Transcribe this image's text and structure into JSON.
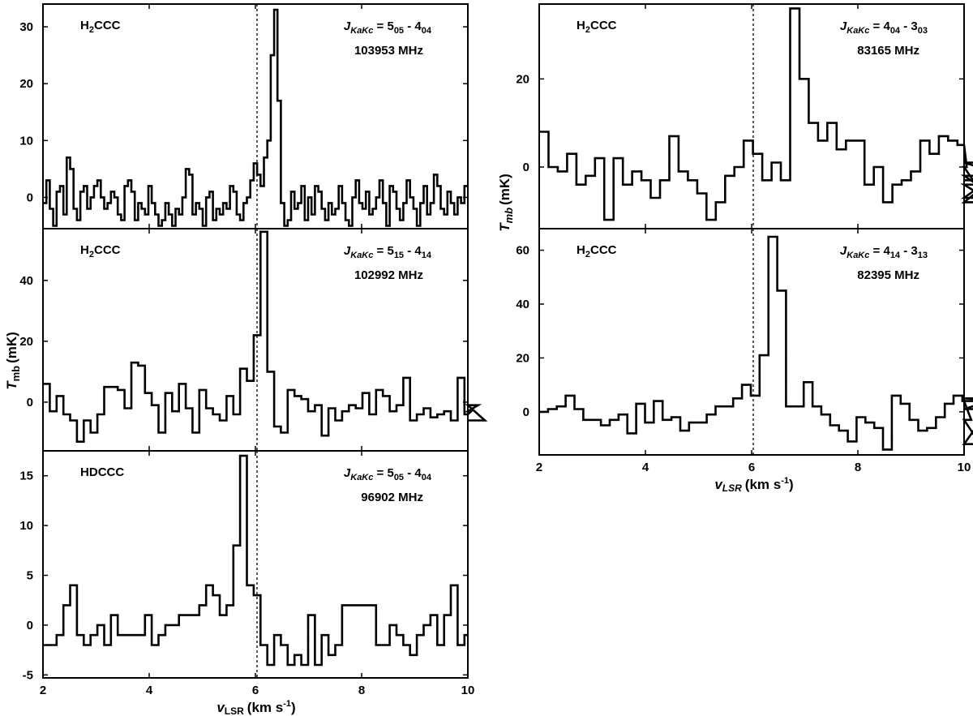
{
  "figure": {
    "left_xlabel": {
      "main": "v",
      "sub": "LSR",
      "unit": "(km  s",
      "sup": "-1",
      "close": ")"
    },
    "left_ylabel": {
      "main": "T",
      "sub": "mb",
      "unit": "(mK)"
    },
    "right_xlabel": {
      "main": "v",
      "sub": "LSR",
      "unit": "(km  s",
      "sup": "-1",
      "close": ")"
    },
    "right_ylabel": {
      "main": "T",
      "sub": "mb",
      "unit": "(mK)"
    }
  },
  "chart_data": [
    {
      "type": "line",
      "style": "step",
      "molecule": "H2CCC",
      "transition": "JKaKc = 505 - 404",
      "frequency": "103953 MHz",
      "xlim": [
        2,
        10
      ],
      "ylim": [
        -5.5,
        34
      ],
      "xticks": [
        2,
        4,
        6,
        8,
        10
      ],
      "xtick_labels_shown": false,
      "yticks": [
        0,
        10,
        20,
        30
      ],
      "vline": 6.03,
      "x_step": 0.064,
      "x_start": 2.0,
      "y": [
        -1,
        3,
        -2,
        -5,
        1,
        2,
        -3,
        7,
        5,
        -2,
        -4,
        1,
        2,
        -2,
        0,
        2,
        3,
        0,
        -2,
        -1,
        1,
        0,
        -3,
        -4,
        2,
        3,
        1,
        -4,
        -1,
        -2,
        -3,
        2,
        -1,
        -3,
        -5,
        -4,
        -1,
        -3,
        -5,
        -2,
        -3,
        0,
        5,
        4,
        -3,
        -1,
        -2,
        -5,
        0,
        1,
        -4,
        -2,
        -3,
        -1,
        -2,
        2,
        1,
        -3,
        -4,
        -1,
        0,
        3,
        6,
        4,
        2,
        7,
        10,
        25,
        33,
        17,
        -1,
        -5,
        -4,
        1,
        -2,
        -1,
        2,
        -4,
        0,
        -3,
        2,
        1,
        -2,
        -4,
        -1,
        -3,
        -2,
        2,
        -1,
        -4,
        -5,
        0,
        3,
        -1,
        -2,
        1,
        -3,
        -2,
        0,
        3,
        -1,
        -5,
        2,
        1,
        -2,
        -4,
        -1,
        3,
        0,
        -2,
        -5,
        -1,
        2,
        -3,
        -1,
        4,
        2,
        -2,
        -3,
        1,
        -1,
        -3,
        0,
        -1,
        2
      ]
    },
    {
      "type": "line",
      "style": "step",
      "molecule": "H2CCC",
      "transition": "JKaKc = 515 - 414",
      "frequency": "102992 MHz",
      "xlim": [
        2,
        10
      ],
      "ylim": [
        -16,
        57
      ],
      "xticks": [
        2,
        4,
        6,
        8,
        10
      ],
      "xtick_labels_shown": false,
      "yticks": [
        0,
        20,
        40
      ],
      "vline": 6.03,
      "x_step": 0.128,
      "x_start": 2.0,
      "y": [
        6,
        -3,
        2,
        -4,
        -6,
        -13,
        -6,
        -10,
        -4,
        5,
        5,
        4,
        -2,
        13,
        12,
        3,
        -1,
        -10,
        3,
        -3,
        6,
        -2,
        -10,
        4,
        -2,
        -4,
        -6,
        2,
        -4,
        11,
        7,
        22,
        56,
        10,
        -8,
        -10,
        4,
        2,
        1,
        -3,
        -1,
        -11,
        -2,
        -6,
        -3,
        -1,
        -2,
        3,
        -4,
        4,
        2,
        -3,
        -1,
        8,
        -6,
        -4,
        -2,
        -5,
        -4,
        -3,
        -6,
        8,
        -4,
        -3,
        -1,
        -6
      ]
    },
    {
      "type": "line",
      "style": "step",
      "molecule": "HDCCC",
      "transition": "JKaKc = 505 - 404",
      "frequency": "96902 MHz",
      "xlim": [
        2,
        10
      ],
      "ylim": [
        -5.3,
        17.5
      ],
      "xticks": [
        2,
        4,
        6,
        8,
        10
      ],
      "xtick_labels_shown": true,
      "yticks": [
        -5,
        0,
        5,
        10,
        15
      ],
      "vline": 6.03,
      "x_step": 0.128,
      "x_start": 2.0,
      "y": [
        -2,
        -2,
        -1,
        2,
        4,
        -1,
        -2,
        -1,
        0,
        -2,
        1,
        -1,
        -1,
        -1,
        -1,
        1,
        -2,
        -1,
        0,
        0,
        1,
        1,
        1,
        2,
        4,
        3,
        1,
        2,
        8,
        17,
        4,
        3,
        -2,
        -4,
        -1,
        -2,
        -4,
        -3,
        -4,
        1,
        -4,
        -1,
        -3,
        -2,
        2,
        2,
        2,
        2,
        2,
        -2,
        -2,
        0,
        -1,
        -2,
        -3,
        -1,
        0,
        1,
        -2,
        1,
        4,
        -2,
        -1
      ]
    },
    {
      "type": "line",
      "style": "step",
      "molecule": "H2CCC",
      "transition": "JKaKc = 404 - 303",
      "frequency": "83165 MHz",
      "xlim": [
        2,
        10
      ],
      "ylim": [
        -14,
        37
      ],
      "xticks": [
        2,
        4,
        6,
        8,
        10
      ],
      "xtick_labels_shown": false,
      "yticks": [
        0,
        20
      ],
      "vline": 6.03,
      "x_step": 0.175,
      "x_start": 2.0,
      "y": [
        8,
        0,
        -1,
        3,
        -4,
        -2,
        2,
        -12,
        2,
        -4,
        -1,
        -3,
        -7,
        -3,
        7,
        -1,
        -3,
        -6,
        -12,
        -8,
        -2,
        0,
        6,
        3,
        -3,
        1,
        -3,
        36,
        20,
        10,
        6,
        10,
        4,
        6,
        6,
        -4,
        0,
        -8,
        -4,
        -3,
        -1,
        6,
        3,
        7,
        6,
        5,
        0,
        -4,
        -7,
        -2,
        -8,
        1,
        -3
      ]
    },
    {
      "type": "line",
      "style": "step",
      "molecule": "H2CCC",
      "transition": "JKaKc = 414 - 313",
      "frequency": "82395 MHz",
      "xlim": [
        2,
        10
      ],
      "ylim": [
        -16,
        68
      ],
      "xticks": [
        2,
        4,
        6,
        8,
        10
      ],
      "xtick_labels_shown": true,
      "yticks": [
        0,
        20,
        40,
        60
      ],
      "vline": 6.03,
      "x_step": 0.166,
      "x_start": 2.0,
      "y": [
        0,
        1,
        2,
        6,
        1,
        -3,
        -3,
        -5,
        -3,
        -1,
        -8,
        3,
        -4,
        4,
        -3,
        -2,
        -7,
        -4,
        -4,
        -1,
        2,
        2,
        5,
        10,
        6,
        21,
        65,
        45,
        2,
        2,
        11,
        2,
        -1,
        -5,
        -7,
        -11,
        -2,
        -4,
        -6,
        -14,
        6,
        3,
        -3,
        -7,
        -6,
        -2,
        3,
        6,
        4,
        -3,
        -12,
        1,
        5,
        4
      ]
    }
  ]
}
